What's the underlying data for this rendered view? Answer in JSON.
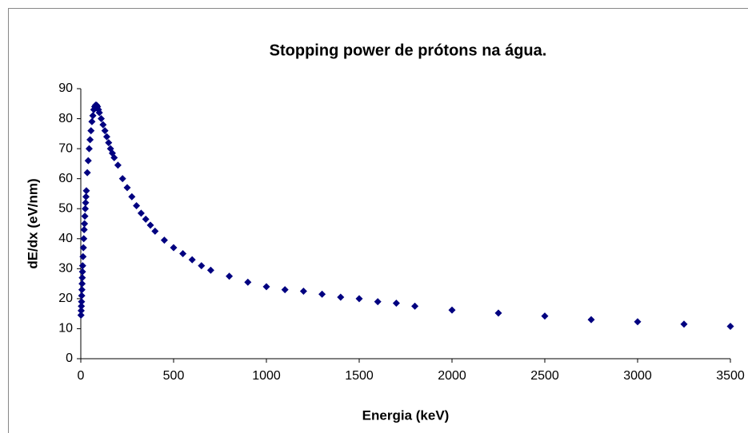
{
  "chart_data": {
    "type": "scatter",
    "title": "Stopping power de prótons na água.",
    "x_label": "Energia (keV)",
    "y_label": "dE/dx (eV/nm)",
    "xlim": [
      0,
      3500
    ],
    "xticks": [
      0,
      500,
      1000,
      1500,
      2000,
      2500,
      3000,
      3500
    ],
    "ylim": [
      0,
      90
    ],
    "yticks": [
      0,
      10,
      20,
      30,
      40,
      50,
      60,
      70,
      80,
      90
    ],
    "grid": false,
    "series": [
      {
        "name": "Stopping power",
        "color": "#000080",
        "x": [
          1,
          2,
          3,
          4,
          5,
          6,
          7,
          8,
          9,
          10,
          12,
          14,
          16,
          18,
          20,
          22,
          24,
          26,
          28,
          30,
          35,
          40,
          45,
          50,
          55,
          60,
          65,
          70,
          75,
          80,
          85,
          90,
          95,
          100,
          110,
          120,
          130,
          140,
          150,
          160,
          170,
          180,
          200,
          225,
          250,
          275,
          300,
          325,
          350,
          375,
          400,
          450,
          500,
          550,
          600,
          650,
          700,
          800,
          900,
          1000,
          1100,
          1200,
          1300,
          1400,
          1500,
          1600,
          1700,
          1800,
          2000,
          2250,
          2500,
          2750,
          3000,
          3250,
          3500
        ],
        "values": [
          14.5,
          16,
          17.5,
          19,
          21,
          23,
          25,
          27,
          29,
          31,
          34,
          37,
          40,
          43,
          45,
          47.5,
          50,
          52,
          54,
          56,
          62,
          66,
          70,
          73,
          76,
          79,
          81,
          83,
          84,
          84.5,
          84.5,
          84,
          83,
          82,
          80,
          78,
          76,
          74,
          72,
          70,
          68.5,
          67,
          64.5,
          60,
          57,
          54,
          51,
          48.5,
          46.5,
          44.5,
          42.5,
          39.5,
          37,
          35,
          33,
          31,
          29.5,
          27.5,
          25.5,
          24,
          23,
          22.5,
          21.5,
          20.5,
          20,
          19,
          18.5,
          17.5,
          16.2,
          15.2,
          14.2,
          13,
          12.3,
          11.5,
          10.8
        ]
      }
    ]
  }
}
